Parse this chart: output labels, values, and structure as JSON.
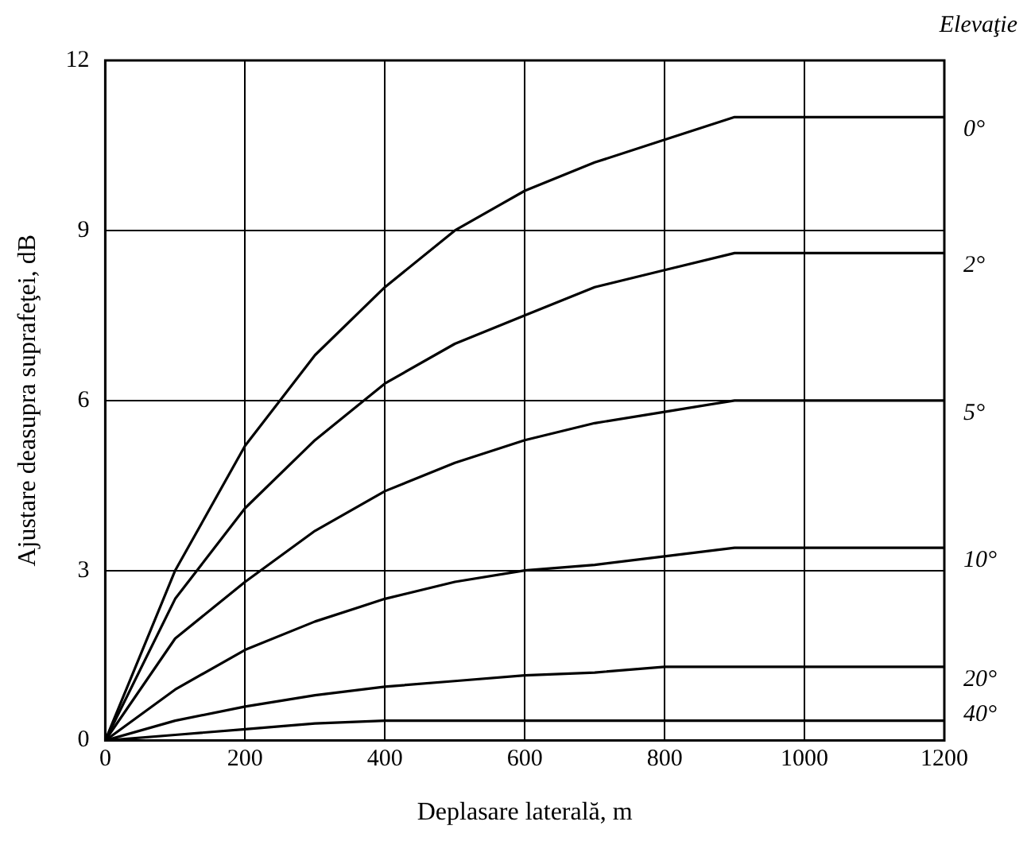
{
  "chart_data": {
    "type": "line",
    "xlabel": "Deplasare laterală, m",
    "ylabel": "Ajustare deasupra suprafeţei, dB",
    "legend_title": "Elevaţie",
    "x": [
      0,
      100,
      200,
      300,
      400,
      500,
      600,
      700,
      800,
      900,
      1000,
      1200
    ],
    "series": [
      {
        "name": "0°",
        "color": "#000000",
        "values": [
          0,
          3.0,
          5.2,
          6.8,
          8.0,
          9.0,
          9.7,
          10.2,
          10.6,
          11.0,
          11.0,
          11.0
        ]
      },
      {
        "name": "2°",
        "color": "#000000",
        "values": [
          0,
          2.5,
          4.1,
          5.3,
          6.3,
          7.0,
          7.5,
          8.0,
          8.3,
          8.6,
          8.6,
          8.6
        ]
      },
      {
        "name": "5°",
        "color": "#000000",
        "values": [
          0,
          1.8,
          2.8,
          3.7,
          4.4,
          4.9,
          5.3,
          5.6,
          5.8,
          6.0,
          6.0,
          6.0
        ]
      },
      {
        "name": "10°",
        "color": "#000000",
        "values": [
          0,
          0.9,
          1.6,
          2.1,
          2.5,
          2.8,
          3.0,
          3.1,
          3.25,
          3.4,
          3.4,
          3.4
        ]
      },
      {
        "name": "20°",
        "color": "#000000",
        "values": [
          0,
          0.35,
          0.6,
          0.8,
          0.95,
          1.05,
          1.15,
          1.2,
          1.3,
          1.3,
          1.3,
          1.3
        ]
      },
      {
        "name": "40°",
        "color": "#000000",
        "values": [
          0,
          0.1,
          0.2,
          0.3,
          0.35,
          0.35,
          0.35,
          0.35,
          0.35,
          0.35,
          0.35,
          0.35
        ]
      }
    ],
    "xlim": [
      0,
      1200
    ],
    "xticks": [
      0,
      200,
      400,
      600,
      800,
      1000,
      1200
    ],
    "ylim": [
      0,
      12
    ],
    "yticks": [
      0,
      3,
      6,
      9,
      12
    ],
    "grid": true,
    "legend": false,
    "marker": "none",
    "line_style": "solid"
  }
}
